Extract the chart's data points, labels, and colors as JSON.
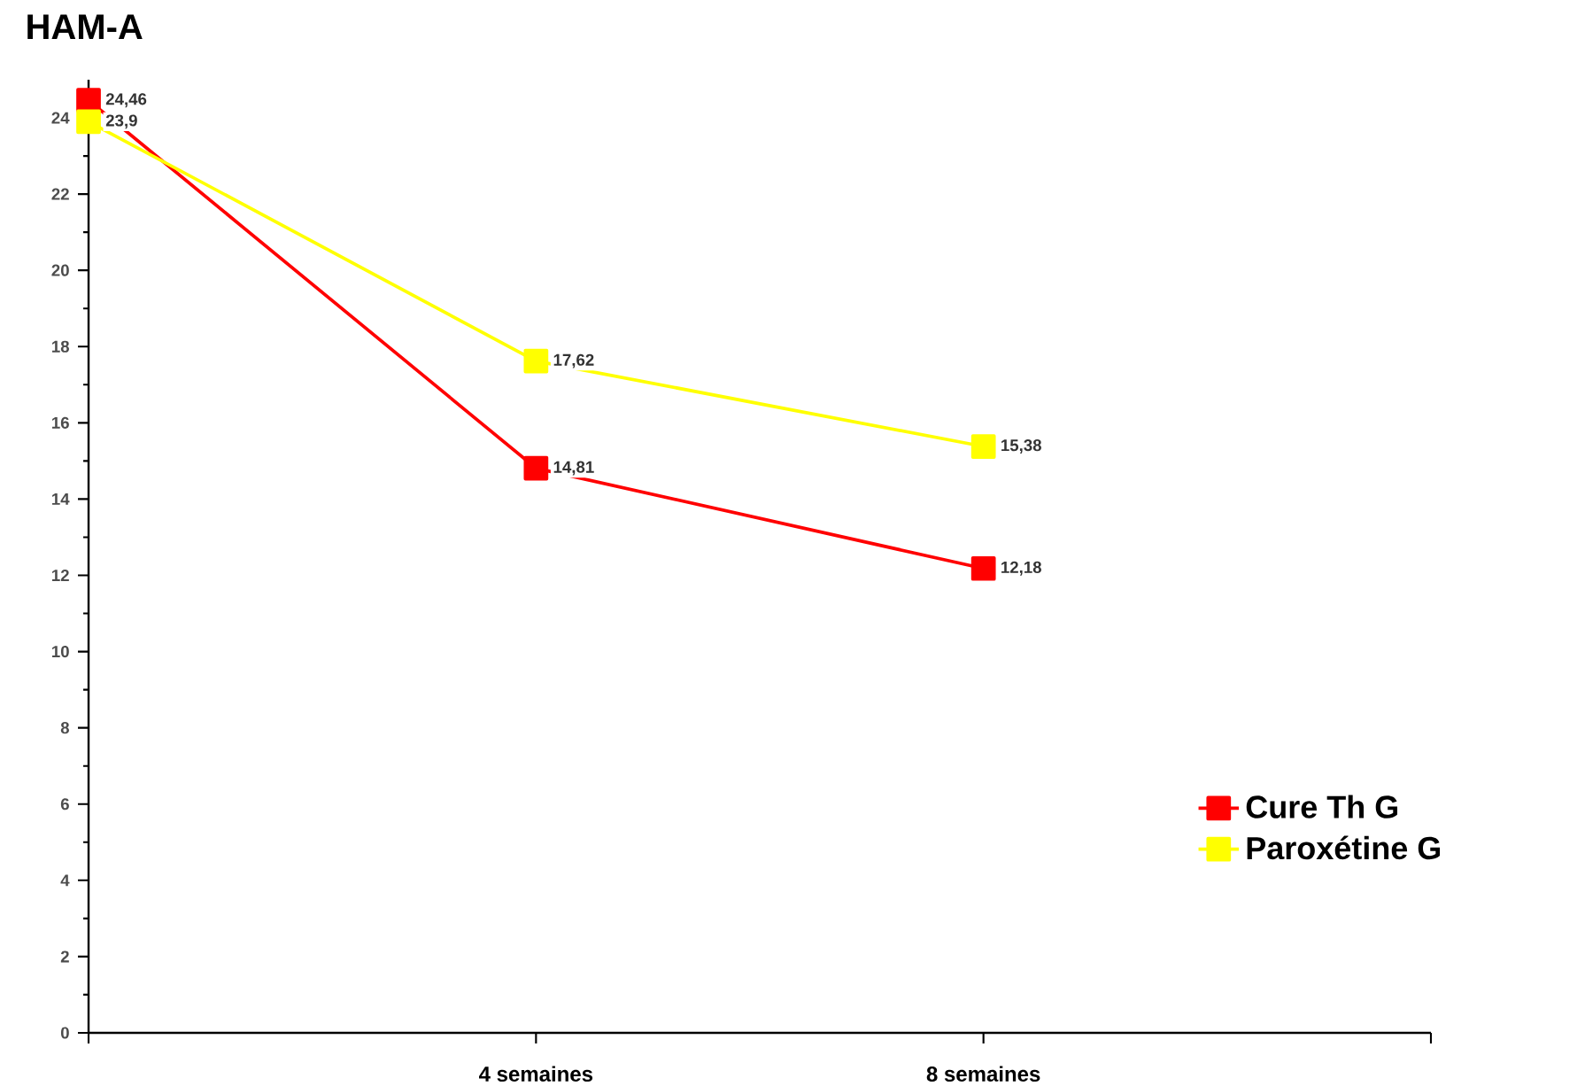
{
  "chart_data": {
    "type": "line",
    "title": "HAM-A",
    "categories": [
      null,
      "4 semaines",
      "8 semaines"
    ],
    "series": [
      {
        "name": "Cure Th G",
        "color": "#ff0000",
        "values": [
          24.46,
          14.81,
          12.18
        ],
        "value_labels": [
          "24,46",
          "14,81",
          "12,18"
        ]
      },
      {
        "name": "Paroxétine G",
        "color": "#ffff00",
        "values": [
          23.9,
          17.62,
          15.38
        ],
        "value_labels": [
          "23,9",
          "17,62",
          "15,38"
        ]
      }
    ],
    "ylim": [
      0,
      25
    ],
    "yticks": [
      0,
      2,
      4,
      6,
      8,
      10,
      12,
      14,
      16,
      18,
      20,
      22,
      24
    ],
    "marker": "square",
    "legend": "right",
    "grid": false
  }
}
